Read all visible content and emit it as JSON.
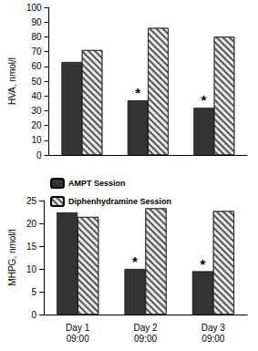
{
  "chart_data": [
    {
      "type": "bar",
      "ylabel": "HVA, nmol/l",
      "categories": [
        "Day 1\n09:00",
        "Day 2\n09:00",
        "Day 3\n09:00"
      ],
      "series": [
        {
          "name": "AMPT Session",
          "color": "#333333",
          "values": [
            63,
            37,
            32
          ]
        },
        {
          "name": "Diphenhydramine Session",
          "color": "#e6e6e6",
          "values": [
            71,
            86,
            80
          ]
        }
      ],
      "ylim": [
        0,
        100
      ],
      "yticks": [
        0,
        10,
        20,
        30,
        40,
        50,
        60,
        70,
        80,
        90,
        100
      ],
      "grid": false,
      "tick_labels": "y",
      "annotations": [
        {
          "text": "*",
          "series": "AMPT Session",
          "category": "Day 2\n09:00"
        },
        {
          "text": "*",
          "series": "AMPT Session",
          "category": "Day 3\n09:00"
        }
      ]
    },
    {
      "type": "bar",
      "ylabel": "MHPG, nmol/l",
      "categories": [
        "Day 1\n09:00",
        "Day 2\n09:00",
        "Day 3\n09:00"
      ],
      "series": [
        {
          "name": "AMPT Session",
          "color": "#333333",
          "values": [
            22.4,
            10,
            9.5
          ]
        },
        {
          "name": "Diphenhydramine Session",
          "color": "#e6e6e6",
          "values": [
            21.4,
            23.3,
            22.7
          ]
        }
      ],
      "ylim": [
        0,
        25
      ],
      "yticks": [
        0,
        5,
        10,
        15,
        20,
        25
      ],
      "grid": false,
      "legend": "top",
      "annotations": [
        {
          "text": "*",
          "series": "AMPT Session",
          "category": "Day 2\n09:00"
        },
        {
          "text": "*",
          "series": "AMPT Session",
          "category": "Day 3\n09:00"
        }
      ]
    }
  ]
}
